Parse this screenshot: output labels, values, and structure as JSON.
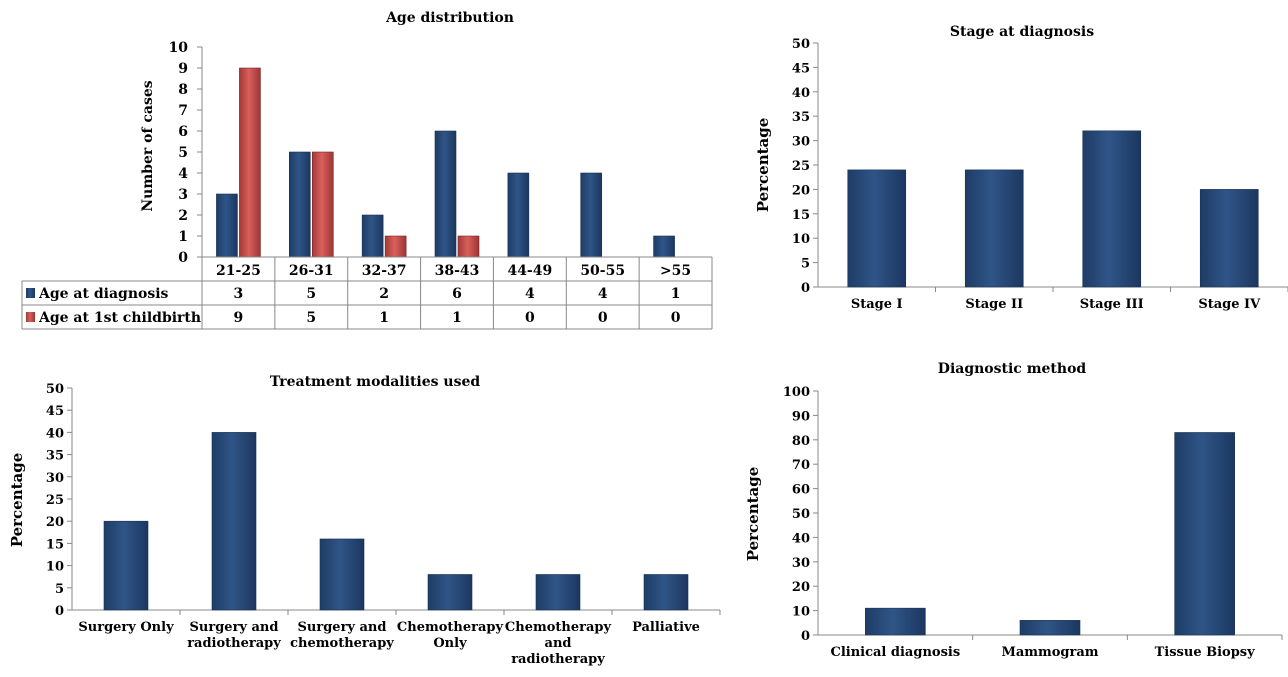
{
  "chart_data": [
    {
      "id": "age",
      "type": "bar",
      "title": "Age distribution",
      "ylabel": "Number of cases",
      "xlabel": "",
      "ylim": [
        0,
        10
      ],
      "yticks": [
        0,
        1,
        2,
        3,
        4,
        5,
        6,
        7,
        8,
        9,
        10
      ],
      "categories": [
        "21-25",
        "26-31",
        "32-37",
        "38-43",
        "44-49",
        "50-55",
        ">55"
      ],
      "series": [
        {
          "name": "Age at diagnosis",
          "values": [
            3,
            5,
            2,
            6,
            4,
            4,
            1
          ],
          "color": "#2f5587"
        },
        {
          "name": "Age at 1st childbirth",
          "values": [
            9,
            5,
            1,
            1,
            0,
            0,
            0
          ],
          "color": "#c0504d"
        }
      ],
      "legend": "data-table",
      "grid": false
    },
    {
      "id": "stage",
      "type": "bar",
      "title": "Stage at diagnosis",
      "ylabel": "Percentage",
      "xlabel": "",
      "ylim": [
        0,
        50
      ],
      "yticks": [
        0,
        5,
        10,
        15,
        20,
        25,
        30,
        35,
        40,
        45,
        50
      ],
      "categories": [
        "Stage I",
        "Stage II",
        "Stage III",
        "Stage IV"
      ],
      "values": [
        24,
        24,
        32,
        20
      ],
      "color": "#2f5587",
      "grid": false
    },
    {
      "id": "treatment",
      "type": "bar",
      "title": "Treatment modalities used",
      "ylabel": "Percentage",
      "xlabel": "",
      "ylim": [
        0,
        50
      ],
      "yticks": [
        0,
        5,
        10,
        15,
        20,
        25,
        30,
        35,
        40,
        45,
        50
      ],
      "categories": [
        [
          "Surgery Only"
        ],
        [
          "Surgery  and",
          "radiotherapy"
        ],
        [
          "Surgery and",
          "chemotherapy"
        ],
        [
          "Chemotherapy",
          "Only"
        ],
        [
          "Chemotherapy",
          "and",
          "radiotherapy"
        ],
        [
          "Palliative"
        ]
      ],
      "values": [
        20,
        40,
        16,
        8,
        8,
        8
      ],
      "color": "#2f5587",
      "grid": false
    },
    {
      "id": "diagnostic",
      "type": "bar",
      "title": "Diagnostic method",
      "ylabel": "Percentage",
      "xlabel": "",
      "ylim": [
        0,
        100
      ],
      "yticks": [
        0,
        10,
        20,
        30,
        40,
        50,
        60,
        70,
        80,
        90,
        100
      ],
      "categories": [
        [
          "Clinical diagnosis"
        ],
        [
          "Mammogram"
        ],
        [
          "Tissue Biopsy"
        ]
      ],
      "values": [
        11,
        6,
        83
      ],
      "color": "#2f5587",
      "grid": false
    }
  ]
}
